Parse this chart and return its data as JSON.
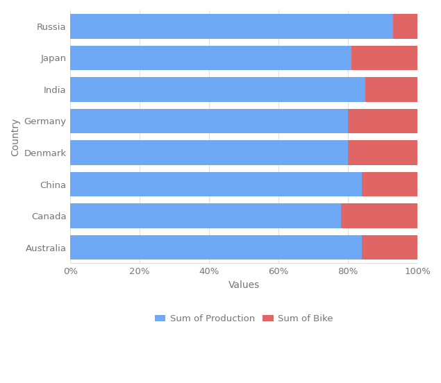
{
  "countries": [
    "Russia",
    "Japan",
    "India",
    "Germany",
    "Denmark",
    "China",
    "Canada",
    "Australia"
  ],
  "production_pct": [
    93,
    81,
    85,
    80,
    80,
    84,
    78,
    84
  ],
  "bike_pct": [
    7,
    19,
    15,
    20,
    20,
    16,
    22,
    16
  ],
  "production_color": "#6fa8f5",
  "bike_color": "#e06666",
  "background_color": "#ffffff",
  "plot_bg_color": "#ffffff",
  "xlabel": "Values",
  "ylabel": "Country",
  "legend_labels": [
    "Sum of Production",
    "Sum of Bike"
  ],
  "xtick_labels": [
    "0%",
    "20%",
    "40%",
    "60%",
    "80%",
    "100%"
  ],
  "xtick_vals": [
    0,
    20,
    40,
    60,
    80,
    100
  ],
  "bar_height": 0.78,
  "grid_color": "#e0e0e0",
  "font_color": "#757575",
  "axis_font_size": 9.5,
  "label_font_size": 10,
  "legend_font_size": 9.5
}
